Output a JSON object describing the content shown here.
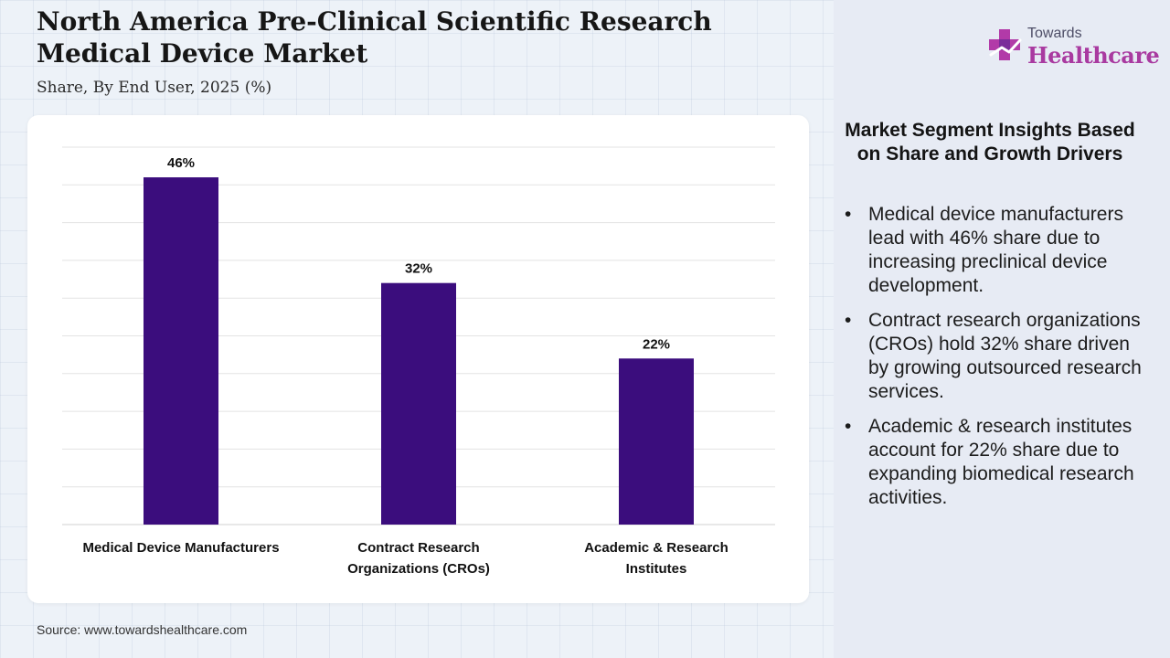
{
  "header": {
    "title": "North America Pre-Clinical Scientific Research Medical Device Market",
    "subtitle": "Share, By End User, 2025 (%)"
  },
  "chart_data": {
    "type": "bar",
    "categories": [
      "Medical Device Manufacturers",
      "Contract Research Organizations (CROs)",
      "Academic & Research Institutes"
    ],
    "values": [
      46,
      32,
      22
    ],
    "value_labels": [
      "46%",
      "32%",
      "22%"
    ],
    "ylim": [
      0,
      50
    ],
    "grid": true,
    "bar_color": "#3b0d7d"
  },
  "insights": {
    "title": "Market Segment Insights Based on Share and Growth Drivers",
    "items": [
      "Medical device manufacturers lead with 46% share due to increasing preclinical device development.",
      "Contract research organizations (CROs) hold 32% share driven by growing outsourced research services.",
      "Academic & research institutes account for 22% share due to expanding biomedical research activities."
    ]
  },
  "logo": {
    "top_text": "Towards",
    "main_text": "Healthcare",
    "icon": "medical-cross-icon",
    "color": "#a93aa0"
  },
  "footer": {
    "source": "Source: www.towardshealthcare.com"
  }
}
